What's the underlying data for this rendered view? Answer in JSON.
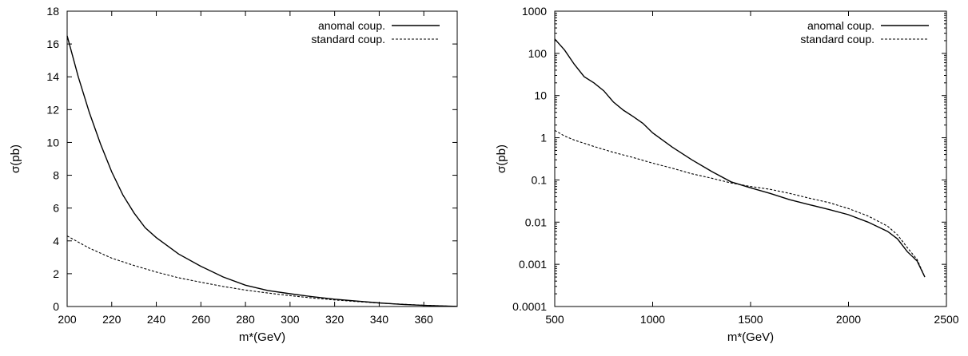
{
  "chart_data": [
    {
      "type": "line",
      "xlabel": "m*(GeV)",
      "ylabel": "σ(pb)",
      "xlim": [
        200,
        375
      ],
      "ylim": [
        0,
        18
      ],
      "xscale": "linear",
      "yscale": "linear",
      "xticks": [
        200,
        220,
        240,
        260,
        280,
        300,
        320,
        340,
        360
      ],
      "yticks": [
        0,
        2,
        4,
        6,
        8,
        10,
        12,
        14,
        16,
        18
      ],
      "grid": false,
      "legend": "top-right",
      "series": [
        {
          "name": "anomal coup.",
          "style": "solid",
          "x": [
            200,
            205,
            210,
            215,
            220,
            225,
            230,
            235,
            240,
            245,
            250,
            260,
            270,
            280,
            290,
            300,
            310,
            320,
            330,
            340,
            350,
            360,
            370,
            375
          ],
          "y": [
            16.5,
            14.0,
            11.8,
            9.9,
            8.2,
            6.8,
            5.7,
            4.8,
            4.2,
            3.7,
            3.2,
            2.45,
            1.8,
            1.3,
            0.98,
            0.78,
            0.6,
            0.45,
            0.33,
            0.22,
            0.13,
            0.07,
            0.03,
            0.01
          ]
        },
        {
          "name": "standard coup.",
          "style": "dashed",
          "x": [
            200,
            210,
            220,
            230,
            240,
            250,
            260,
            270,
            280,
            290,
            300,
            310,
            320,
            330,
            340,
            350,
            360,
            370,
            375
          ],
          "y": [
            4.3,
            3.55,
            2.95,
            2.5,
            2.1,
            1.75,
            1.48,
            1.22,
            1.0,
            0.82,
            0.66,
            0.52,
            0.4,
            0.3,
            0.21,
            0.14,
            0.08,
            0.03,
            0.01
          ]
        }
      ]
    },
    {
      "type": "line",
      "xlabel": "m*(GeV)",
      "ylabel": "σ(pb)",
      "xlim": [
        500,
        2500
      ],
      "ylim": [
        0.0001,
        1000
      ],
      "xscale": "linear",
      "yscale": "log",
      "xticks": [
        500,
        1000,
        1500,
        2000,
        2500
      ],
      "yticks": [
        0.0001,
        0.001,
        0.01,
        0.1,
        1,
        10,
        100,
        1000
      ],
      "ytick_labels": [
        "0.0001",
        "0.001",
        "0.01",
        "0.1",
        "1",
        "10",
        "100",
        "1000"
      ],
      "grid": false,
      "legend": "top-right",
      "series": [
        {
          "name": "anomal coup.",
          "style": "solid",
          "x": [
            500,
            550,
            600,
            650,
            700,
            750,
            800,
            850,
            900,
            950,
            1000,
            1100,
            1200,
            1300,
            1400,
            1500,
            1600,
            1700,
            1800,
            1900,
            2000,
            2100,
            2200,
            2250,
            2300,
            2350,
            2390
          ],
          "y": [
            220,
            120,
            55,
            28,
            20,
            13,
            7,
            4.5,
            3.2,
            2.2,
            1.3,
            0.6,
            0.3,
            0.16,
            0.09,
            0.065,
            0.048,
            0.034,
            0.026,
            0.02,
            0.015,
            0.01,
            0.006,
            0.004,
            0.002,
            0.0012,
            0.0005
          ]
        },
        {
          "name": "standard coup.",
          "style": "dashed",
          "x": [
            500,
            550,
            600,
            700,
            800,
            900,
            1000,
            1100,
            1200,
            1300,
            1400,
            1500,
            1600,
            1700,
            1800,
            1900,
            2000,
            2100,
            2200,
            2250,
            2300,
            2350,
            2390
          ],
          "y": [
            1.5,
            1.1,
            0.88,
            0.62,
            0.45,
            0.34,
            0.25,
            0.19,
            0.14,
            0.11,
            0.085,
            0.07,
            0.06,
            0.048,
            0.037,
            0.029,
            0.021,
            0.014,
            0.008,
            0.005,
            0.0025,
            0.0013,
            0.0005
          ]
        }
      ]
    }
  ]
}
